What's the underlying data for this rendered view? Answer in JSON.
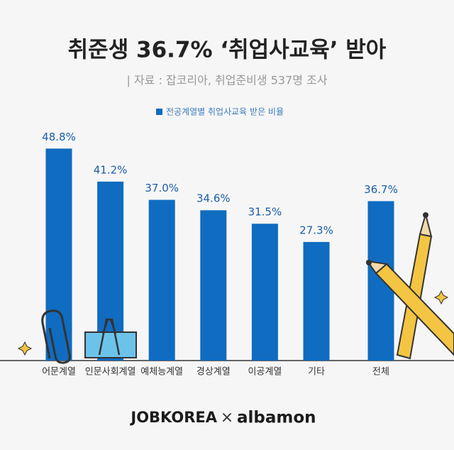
{
  "chart_data": {
    "type": "bar",
    "title": "취준생  36.7% ‘취업사교육’ 받아",
    "subtitle": "| 자료 : 잡코리아, 취업준비생 537명 조사",
    "categories": [
      "어문계열",
      "인문사회계열",
      "예체능계열",
      "경상계열",
      "이공계열",
      "기타",
      "전체"
    ],
    "series": [
      {
        "name": "전공계열별 취업사교육 받은 비율",
        "color": "#0f6cc0",
        "values": [
          48.8,
          41.2,
          37.0,
          34.6,
          31.5,
          27.3,
          36.7
        ],
        "value_labels": [
          "48.8%",
          "41.2%",
          "37.0%",
          "34.6%",
          "31.5%",
          "27.3%",
          "36.7%"
        ]
      }
    ],
    "ylim": [
      0,
      50
    ],
    "footer": {
      "brands": [
        "JOBKOREA",
        "×",
        "albamon"
      ]
    }
  }
}
